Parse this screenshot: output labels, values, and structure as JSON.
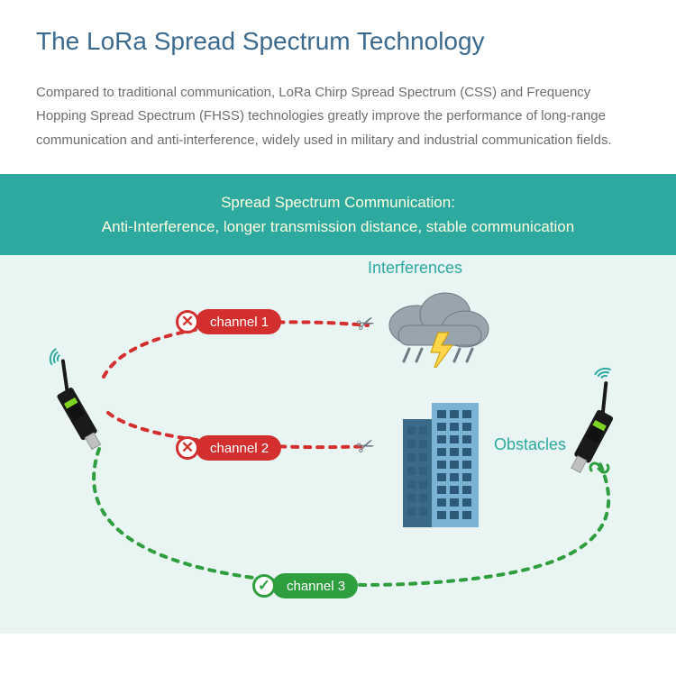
{
  "title": "The LoRa Spread Spectrum Technology",
  "title_color": "#3c6a8e",
  "desc": "Compared to traditional communication, LoRa Chirp Spread Spectrum (CSS) and Frequency Hopping Spread Spectrum (FHSS) technologies greatly improve the performance of long-range communication and anti-interference, widely used in military and industrial communication fields.",
  "desc_color": "#6d6d6d",
  "banner": {
    "line1": "Spread Spectrum Communication:",
    "line2": "Anti-Interference, longer transmission distance, stable communication",
    "bg": "#2ea9a0",
    "text_color": "#fffde0"
  },
  "canvas_bg": "#e8f5f3",
  "channels": {
    "ch1": {
      "label": "channel 1",
      "color": "#d32f2f",
      "ok": false
    },
    "ch2": {
      "label": "channel 2",
      "color": "#d32f2f",
      "ok": false
    },
    "ch3": {
      "label": "channel 3",
      "color": "#2e9e3f",
      "ok": true
    }
  },
  "labels": {
    "interferences": "Interferences",
    "obstacles": "Obstacles"
  },
  "label_color": "#2ea9a0",
  "cloud_fill": "#9aa4ad",
  "cloud_edge": "#6f7a84",
  "bolt_color": "#ffd54a",
  "building_colors": {
    "light": "#79b3d4",
    "dark": "#3a6a87",
    "windows": "#2c5a78"
  },
  "link_broken_color": "#6f7a84",
  "link_ok_color": "#2e9e3f",
  "wave_color": "#2ea9a0"
}
